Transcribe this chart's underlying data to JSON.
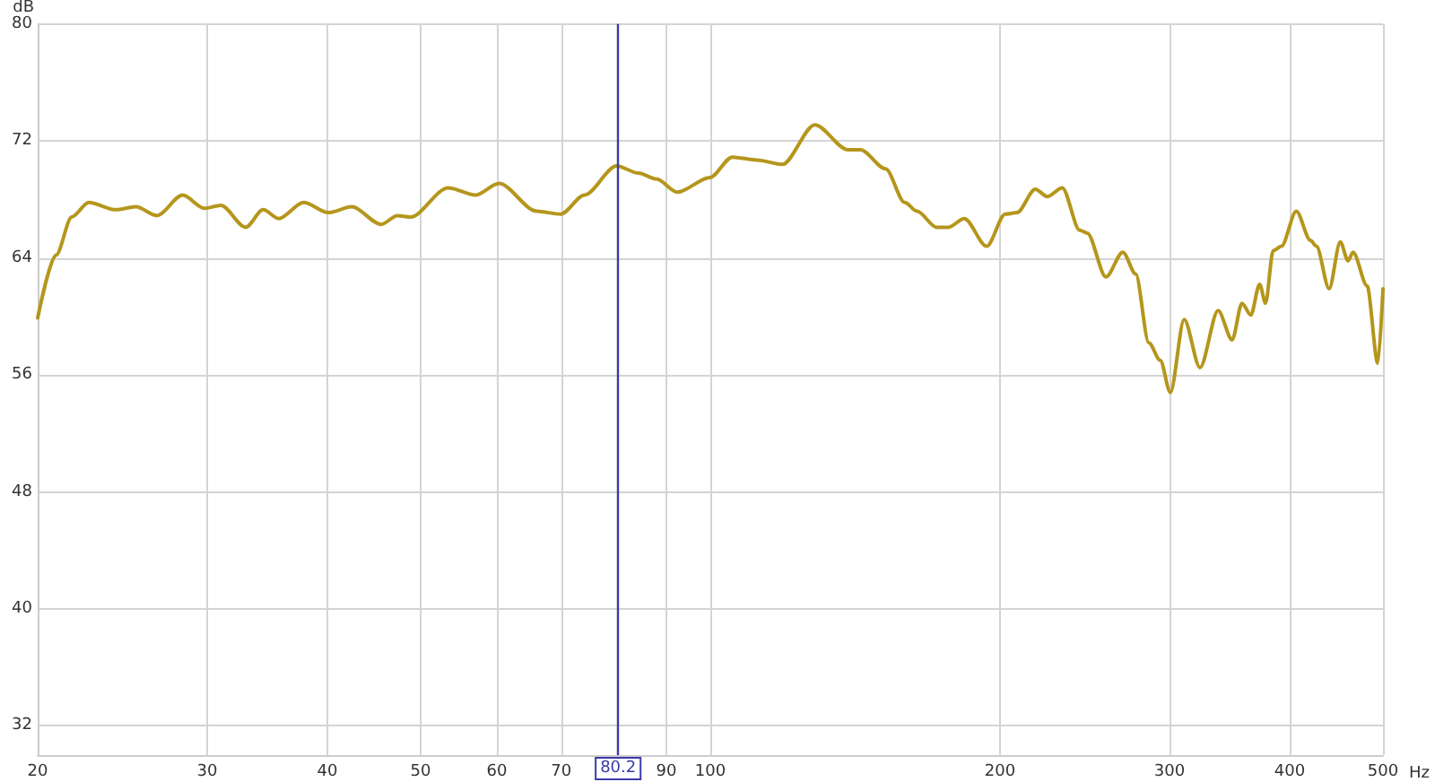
{
  "chart_data": {
    "type": "line",
    "xlabel": "Hz",
    "ylabel": "dB",
    "log": "x",
    "xlim": [
      20,
      500
    ],
    "ylim": [
      30,
      80
    ],
    "xticks": [
      20,
      30,
      40,
      50,
      60,
      70,
      {
        "value": 80,
        "label": null
      },
      90,
      100,
      200,
      300,
      400,
      500
    ],
    "yticks": [
      32,
      40,
      48,
      56,
      64,
      72,
      80
    ],
    "grid": true,
    "marker": "none",
    "line_style": "solid",
    "ref_lines": [
      {
        "axis": "x",
        "value": 80.2,
        "label": "80.2",
        "color": "#3b3ba8"
      }
    ],
    "series": [
      {
        "color": "#b5961c",
        "x": [
          20,
          20.9,
          21.7,
          22.6,
          24.1,
          25.3,
          26.6,
          28.3,
          29.8,
          31.0,
          32.9,
          34.3,
          35.6,
          37.8,
          40.1,
          42.4,
          45.5,
          47.3,
          48.8,
          53.4,
          57.0,
          60.3,
          66.0,
          69.9,
          74.0,
          79.9,
          84.2,
          87.9,
          92.4,
          99.9,
          105.4,
          111.8,
          118.8,
          128.4,
          139.0,
          143.2,
          152.1,
          159.2,
          164.0,
          171.8,
          176.8,
          183.6,
          193.7,
          202.5,
          208.3,
          217.6,
          224.0,
          232.1,
          242.0,
          246.4,
          257.7,
          268.3,
          276.7,
          285.5,
          293.4,
          300.6,
          310.7,
          322.7,
          337.0,
          348.5,
          356.8,
          364.4,
          372.2,
          377.5,
          384.4,
          392.1,
          406.3,
          420.3,
          426.4,
          439.5,
          451.4,
          459.9,
          465.4,
          481.3,
          493.8,
          500
        ],
        "values": [
          59.9,
          64.2,
          66.8,
          67.8,
          67.3,
          67.5,
          66.9,
          68.3,
          67.4,
          67.6,
          66.1,
          67.3,
          66.7,
          67.8,
          67.1,
          67.5,
          66.3,
          66.9,
          66.8,
          68.8,
          68.3,
          69.1,
          67.2,
          67.0,
          68.3,
          70.3,
          69.8,
          69.4,
          68.5,
          69.5,
          70.9,
          70.7,
          70.4,
          73.1,
          71.4,
          71.4,
          70.1,
          67.8,
          67.2,
          66.1,
          66.1,
          66.7,
          64.8,
          67.0,
          67.1,
          68.7,
          68.2,
          68.8,
          65.9,
          65.7,
          62.7,
          64.4,
          62.9,
          58.2,
          57.0,
          54.8,
          59.8,
          56.5,
          60.4,
          58.4,
          60.9,
          60.1,
          62.2,
          60.9,
          64.5,
          64.8,
          67.2,
          65.2,
          64.8,
          61.9,
          65.1,
          63.8,
          64.4,
          62.1,
          56.8,
          61.9
        ]
      }
    ]
  }
}
